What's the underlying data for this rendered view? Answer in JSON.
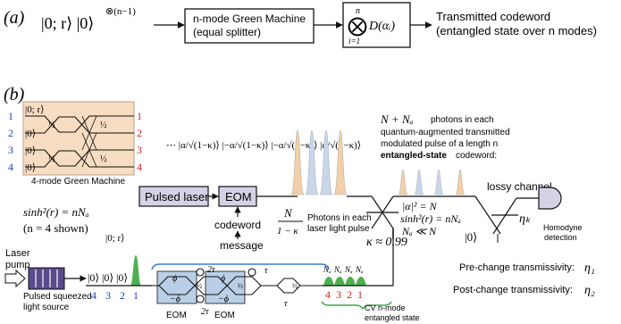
{
  "colors": {
    "gm_fill": "#f6dcc0",
    "laser_fill": "#d6d2e6",
    "eom_fill": "#b9cfe6",
    "blue_label": "#1f3fbf",
    "red_label": "#d42020",
    "pulse_orange": "#f2cfa8",
    "pulse_blue": "#c8d6ec",
    "squeezed_green": "#4caf50",
    "squeezed_purple": "#5a4b8c",
    "bracket_blue": "#3a7fd5",
    "bracket_green": "#3aa845"
  },
  "panel_a": {
    "label": "(a)",
    "input_state": "|0; r⟩ |0⟩",
    "input_power": "⊗(n−1)",
    "green_machine_box": [
      "n-mode Green Machine",
      "(equal splitter)"
    ],
    "op_top": "n",
    "op_symbol": "⨂",
    "op_bottom": "i=1",
    "op_rhs": "D(αᵢ)",
    "output_label": [
      "Transmitted codeword",
      "(entangled state over n modes)"
    ]
  },
  "panel_b": {
    "label": "(b)",
    "gm": {
      "input_numbers": [
        "1",
        "2",
        "3",
        "4"
      ],
      "input_states": [
        "|0; r⟩",
        "|0⟩",
        "|0⟩",
        "|0⟩"
      ],
      "output_numbers": [
        "1",
        "2",
        "3",
        "4"
      ],
      "splitter_label": "½",
      "caption": "4-mode Green Machine"
    },
    "displacement_kets": "⋯ |α/√(1−κ)⟩ |−α/√(1−κ)⟩ |−α/√(1−κ)⟩ |α/√(1−κ)⟩",
    "pulsed_laser": "Pulsed laser",
    "eom": "EOM",
    "codeword": "codeword",
    "message": "message",
    "n_over": "N",
    "n_under": "1 − κ",
    "photons_note": [
      "Photons in each",
      "laser light pulse"
    ],
    "kappa": "κ ≈ 0.99",
    "top_note_math": "N + Nₐ",
    "top_note": [
      "photons in each",
      "quantum-augmented transmitted",
      "modulated pulse of a length n"
    ],
    "top_note_bold": "entangled-state",
    "top_note_tail": "codeword:",
    "alpha_eq": "|α|² = N",
    "sinh_eq": "sinh²(r) = nNₐ",
    "na_ll": "Nₐ ≪ N",
    "vacuum": "|0⟩",
    "lossy_channel": "lossy channel",
    "eta_k": "ηₖ",
    "homodyne": [
      "Homodyne",
      "detection"
    ],
    "left_sinh": "sinh²(r) = nNₐ",
    "left_n": "(n = 4 shown)",
    "squeezed_ket": "|0; r⟩",
    "laser_pump": [
      "Laser",
      "pump"
    ],
    "pulsed_source": [
      "Pulsed squeezed",
      "light source"
    ],
    "pulse_train_kets": [
      "|0⟩",
      "|0⟩",
      "|0⟩"
    ],
    "pulse_train_nums": [
      "4",
      "3",
      "2",
      "1"
    ],
    "loop_eom": [
      "EOM",
      "EOM"
    ],
    "phase_top": "ϕ",
    "phase_bottom": "−ϕ",
    "half_label": "½",
    "two_tau": "2τ",
    "tau": "τ",
    "cv_na": [
      "Nₐ",
      "Nₐ",
      "Nₐ",
      "Nₐ"
    ],
    "cv_nums": [
      "4",
      "3",
      "2",
      "1"
    ],
    "cv_caption": [
      "CV n-mode",
      "entangled state"
    ],
    "pre_change": "Pre-change transmissivity:",
    "eta1": "η₁",
    "post_change": "Post-change transmissivity:",
    "eta2": "η₂"
  }
}
